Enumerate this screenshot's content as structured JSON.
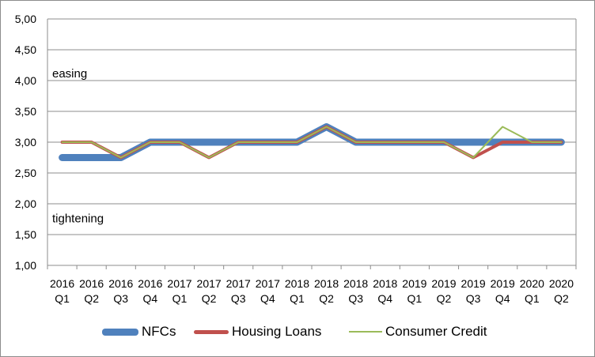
{
  "chart_data": {
    "type": "line",
    "categories": [
      [
        "2016",
        "Q1"
      ],
      [
        "2016",
        "Q2"
      ],
      [
        "2016",
        "Q3"
      ],
      [
        "2016",
        "Q4"
      ],
      [
        "2017",
        "Q1"
      ],
      [
        "2017",
        "Q2"
      ],
      [
        "2017",
        "Q3"
      ],
      [
        "2017",
        "Q4"
      ],
      [
        "2018",
        "Q1"
      ],
      [
        "2018",
        "Q2"
      ],
      [
        "2018",
        "Q3"
      ],
      [
        "2018",
        "Q4"
      ],
      [
        "2019",
        "Q1"
      ],
      [
        "2019",
        "Q2"
      ],
      [
        "2019",
        "Q3"
      ],
      [
        "2019",
        "Q4"
      ],
      [
        "2020",
        "Q1"
      ],
      [
        "2020",
        "Q2"
      ]
    ],
    "yticks": [
      "1,00",
      "1,50",
      "2,00",
      "2,50",
      "3,00",
      "3,50",
      "4,00",
      "4,50",
      "5,00"
    ],
    "ylim": [
      1,
      5
    ],
    "grid": true,
    "legend_position": "bottom",
    "annotations": [
      {
        "text": "easing",
        "y": 4.1
      },
      {
        "text": "tightening",
        "y": 1.75
      }
    ],
    "series": [
      {
        "name": "NFCs",
        "color": "#4f81bd",
        "values": [
          2.75,
          2.75,
          2.75,
          3.0,
          3.0,
          3.0,
          3.0,
          3.0,
          3.0,
          3.25,
          3.0,
          3.0,
          3.0,
          3.0,
          3.0,
          3.0,
          3.0,
          3.0
        ]
      },
      {
        "name": "Housing Loans",
        "color": "#c0504d",
        "values": [
          3.0,
          3.0,
          2.75,
          3.0,
          3.0,
          2.75,
          3.0,
          3.0,
          3.0,
          3.25,
          3.0,
          3.0,
          3.0,
          3.0,
          2.75,
          3.0,
          3.0,
          3.0
        ]
      },
      {
        "name": "Consumer Credit",
        "color": "#9bbb59",
        "values": [
          3.0,
          3.0,
          2.75,
          3.0,
          3.0,
          2.75,
          3.0,
          3.0,
          3.0,
          3.25,
          3.0,
          3.0,
          3.0,
          3.0,
          2.75,
          3.25,
          3.0,
          3.0
        ]
      }
    ]
  }
}
